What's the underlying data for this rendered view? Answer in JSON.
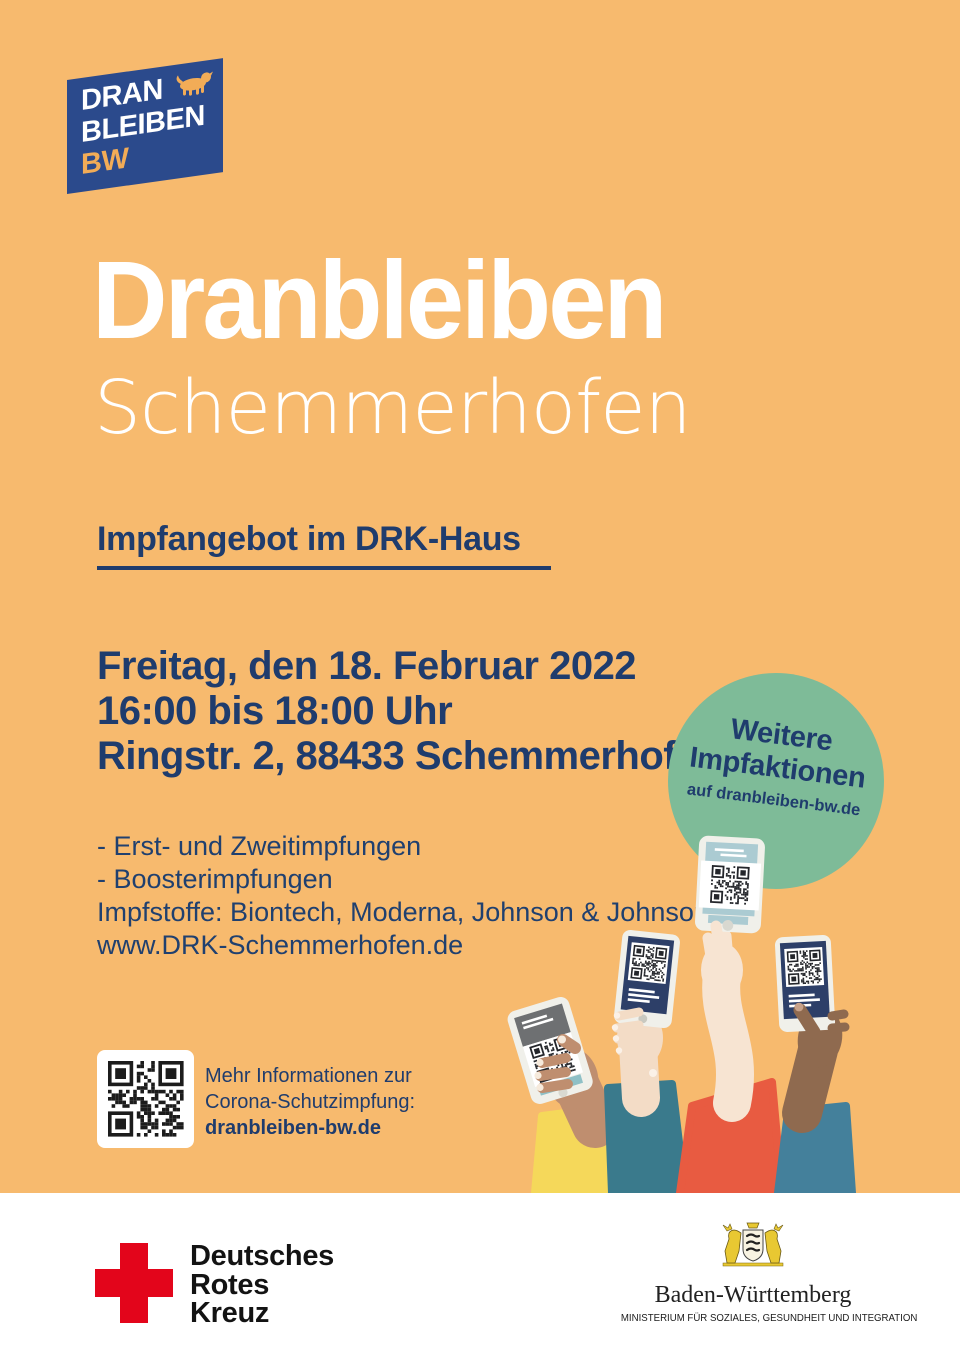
{
  "poster": {
    "badge": {
      "line1": "DRAN",
      "line2": "BLEIBEN",
      "line3": "BW"
    },
    "title": "Dranbleiben",
    "subtitle": "Schemmerhofen",
    "section_heading": "Impfangebot im DRK-Haus",
    "event": {
      "line1": "Freitag, den 18. Februar 2022",
      "line2": "16:00 bis 18:00 Uhr",
      "line3": "Ringstr. 2, 88433 Schemmerhofen"
    },
    "sticker": {
      "line1": "Weitere",
      "line2": "Impfaktionen",
      "line3": "auf dranbleiben-bw.de"
    },
    "details": [
      "- Erst- und Zweitimpfungen",
      "- Boosterimpfungen",
      "Impfstoffe: Biontech, Moderna, Johnson & Johnson",
      "www.DRK-Schemmerhofen.de"
    ],
    "qr_info": {
      "line1": "Mehr Informationen zur",
      "line2": "Corona-Schutzimpfung:",
      "link": "dranbleiben-bw.de"
    },
    "footer": {
      "drk": {
        "line1": "Deutsches",
        "line2": "Rotes",
        "line3": "Kreuz"
      },
      "bw": {
        "name": "Baden-Württemberg",
        "ministry": "MINISTERIUM FÜR SOZIALES, GESUNDHEIT UND INTEGRATION"
      }
    },
    "colors": {
      "background": "#F7BA6E",
      "badge_blue": "#2B4A8C",
      "navy_text": "#1F3C6D",
      "sticker_green": "#7EBB98",
      "drk_red": "#E3051B",
      "bw_gold": "#E8C832"
    }
  }
}
